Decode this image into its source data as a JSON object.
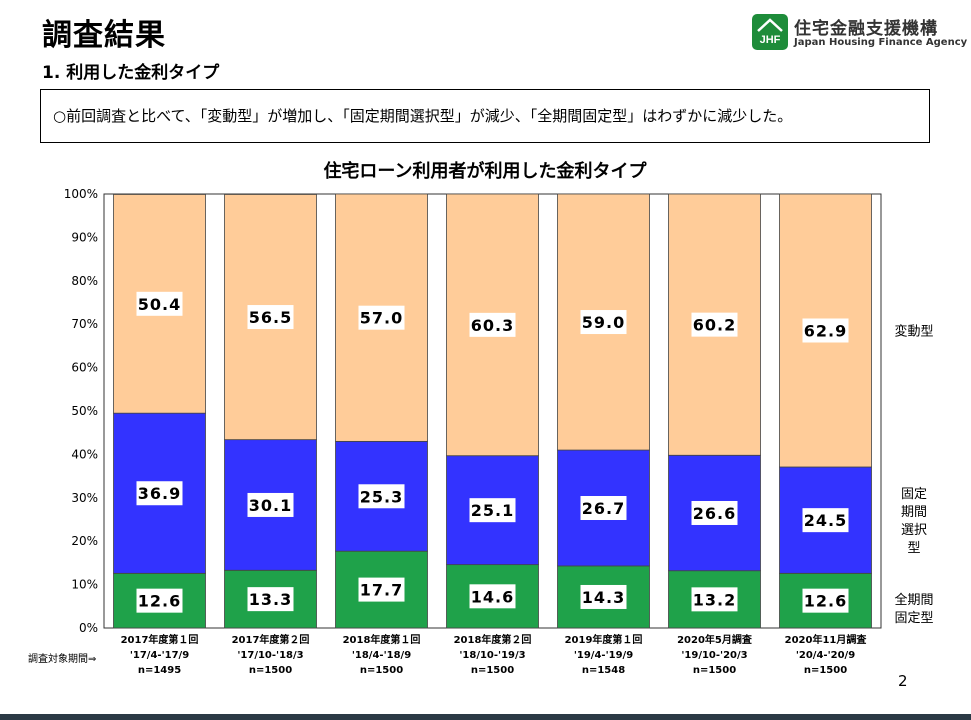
{
  "header": {
    "title": "調査結果",
    "subtitle": "1. 利用した金利タイプ"
  },
  "logo": {
    "name_jp": "住宅金融支援機構",
    "name_en": "Japan Housing Finance Agency",
    "mark_text": "JHF"
  },
  "summary": "○前回調査と比べて、「変動型」が増加し、「固定期間選択型」が減少、「全期間固定型」はわずかに減少した。",
  "page_number": "2",
  "colors": {
    "variable": "#FFCC99",
    "fixed_period": "#3333FF",
    "fully_fixed": "#1FA24A",
    "plot_border": "#333333",
    "logo_green": "#1e8c3a"
  },
  "chart_data": {
    "type": "bar",
    "stacked": true,
    "title": "住宅ローン利用者が利用した金利タイプ",
    "ylim": [
      0,
      100
    ],
    "yticks": [
      "0%",
      "10%",
      "20%",
      "30%",
      "40%",
      "50%",
      "60%",
      "70%",
      "80%",
      "90%",
      "100%"
    ],
    "period_label": "調査対象期間⇒",
    "categories": [
      [
        "2017年度第１回",
        "'17/4-'17/9",
        "n=1495"
      ],
      [
        "2017年度第２回",
        "'17/10-'18/3",
        "n=1500"
      ],
      [
        "2018年度第１回",
        "'18/4-'18/9",
        "n=1500"
      ],
      [
        "2018年度第２回",
        "'18/10-'19/3",
        "n=1500"
      ],
      [
        "2019年度第１回",
        "'19/4-'19/9",
        "n=1548"
      ],
      [
        "2020年5月調査",
        "'19/10-'20/3",
        "n=1500"
      ],
      [
        "2020年11月調査",
        "'20/4-'20/9",
        "n=1500"
      ]
    ],
    "series": [
      {
        "name": "全期間固定型",
        "legend_lines": [
          "全期間",
          "固定型"
        ],
        "color_key": "fully_fixed",
        "values": [
          12.6,
          13.3,
          17.7,
          14.6,
          14.3,
          13.2,
          12.6
        ],
        "labels": [
          "12.6",
          "13.3",
          "17.7",
          "14.6",
          "14.3",
          "13.2",
          "12.6"
        ]
      },
      {
        "name": "固定期間選択型",
        "legend_lines": [
          "固定",
          "期間",
          "選択",
          "型"
        ],
        "color_key": "fixed_period",
        "values": [
          36.9,
          30.1,
          25.3,
          25.1,
          26.7,
          26.6,
          24.5
        ],
        "labels": [
          "36.9",
          "30.1",
          "25.3",
          "25.1",
          "26.7",
          "26.6",
          "24.5"
        ]
      },
      {
        "name": "変動型",
        "legend_lines": [
          "変動型"
        ],
        "color_key": "variable",
        "values": [
          50.4,
          56.5,
          57.0,
          60.3,
          59.0,
          60.2,
          62.9
        ],
        "labels": [
          "50.4",
          "56.5",
          "57.0",
          "60.3",
          "59.0",
          "60.2",
          "62.9"
        ]
      }
    ]
  }
}
